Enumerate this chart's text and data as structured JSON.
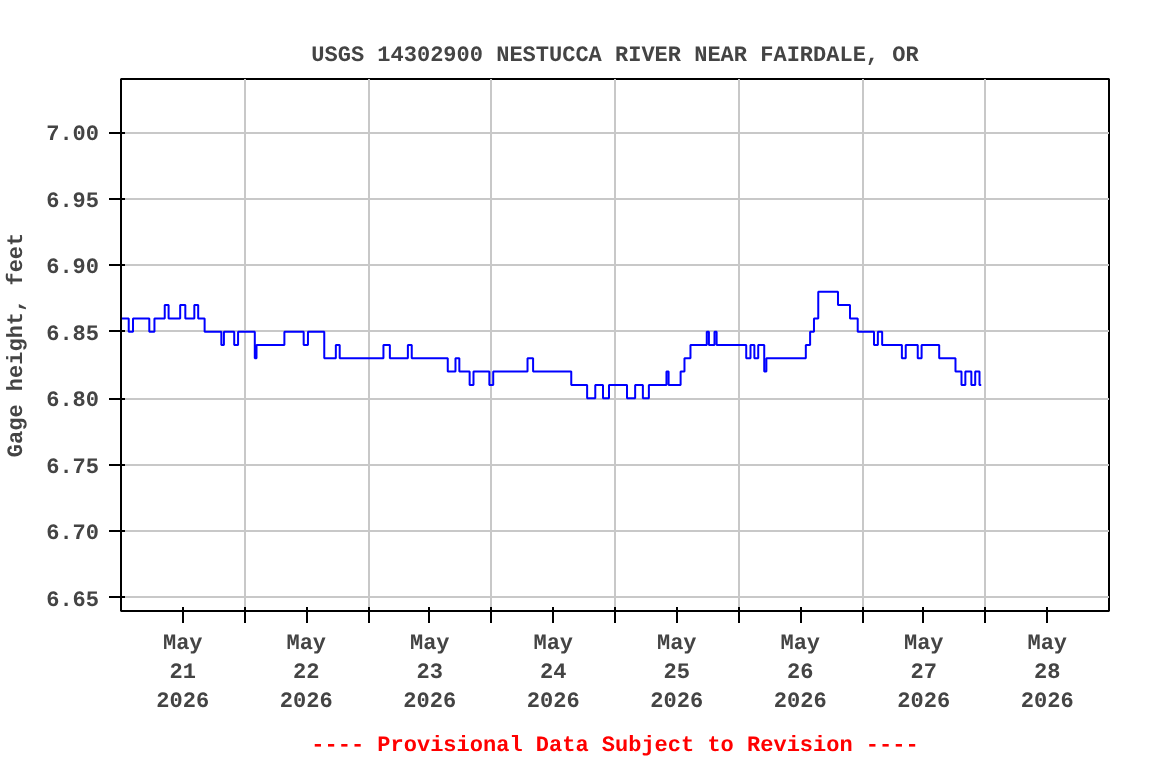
{
  "chart_data": {
    "type": "step",
    "title": "USGS 14302900 NESTUCCA RIVER NEAR FAIRDALE, OR",
    "ylabel": "Gage height, feet",
    "annotations": [
      "---- Provisional Data Subject to Revision ----"
    ],
    "xlim": [
      "2026-05-21T00:00",
      "2026-05-29T00:00"
    ],
    "ylim": [
      6.64,
      7.04
    ],
    "yticks": [
      {
        "value": 6.65,
        "label": "6.65"
      },
      {
        "value": 6.7,
        "label": "6.70"
      },
      {
        "value": 6.75,
        "label": "6.75"
      },
      {
        "value": 6.8,
        "label": "6.80"
      },
      {
        "value": 6.85,
        "label": "6.85"
      },
      {
        "value": 6.9,
        "label": "6.90"
      },
      {
        "value": 6.95,
        "label": "6.95"
      },
      {
        "value": 7.0,
        "label": "7.00"
      }
    ],
    "xticks": [
      {
        "value": "2026-05-21T12:00",
        "label": "May\n21\n2026"
      },
      {
        "value": "2026-05-22T00:00",
        "label": null
      },
      {
        "value": "2026-05-22T12:00",
        "label": "May\n22\n2026"
      },
      {
        "value": "2026-05-23T00:00",
        "label": null
      },
      {
        "value": "2026-05-23T12:00",
        "label": "May\n23\n2026"
      },
      {
        "value": "2026-05-24T00:00",
        "label": null
      },
      {
        "value": "2026-05-24T12:00",
        "label": "May\n24\n2026"
      },
      {
        "value": "2026-05-25T00:00",
        "label": null
      },
      {
        "value": "2026-05-25T12:00",
        "label": "May\n25\n2026"
      },
      {
        "value": "2026-05-26T00:00",
        "label": null
      },
      {
        "value": "2026-05-26T12:00",
        "label": "May\n26\n2026"
      },
      {
        "value": "2026-05-27T00:00",
        "label": null
      },
      {
        "value": "2026-05-27T12:00",
        "label": "May\n27\n2026"
      },
      {
        "value": "2026-05-28T00:00",
        "label": null
      },
      {
        "value": "2026-05-28T12:00",
        "label": "May\n28\n2026"
      }
    ],
    "grid": true,
    "line_style": "solid",
    "series": [
      {
        "color": "#0000ff",
        "x": [
          "2026-05-21T00:00",
          "2026-05-21T01:30",
          "2026-05-21T02:20",
          "2026-05-21T05:30",
          "2026-05-21T06:30",
          "2026-05-21T08:30",
          "2026-05-21T09:15",
          "2026-05-21T11:30",
          "2026-05-21T12:30",
          "2026-05-21T14:15",
          "2026-05-21T15:00",
          "2026-05-21T16:15",
          "2026-05-21T19:30",
          "2026-05-21T20:00",
          "2026-05-21T22:00",
          "2026-05-21T22:45",
          "2026-05-22T02:00",
          "2026-05-22T02:20",
          "2026-05-22T07:45",
          "2026-05-22T11:30",
          "2026-05-22T12:20",
          "2026-05-22T15:30",
          "2026-05-22T17:45",
          "2026-05-22T18:30",
          "2026-05-23T03:00",
          "2026-05-23T04:15",
          "2026-05-23T07:45",
          "2026-05-23T08:30",
          "2026-05-23T15:30",
          "2026-05-23T17:00",
          "2026-05-23T17:45",
          "2026-05-23T19:45",
          "2026-05-23T20:30",
          "2026-05-23T23:35",
          "2026-05-24T00:20",
          "2026-05-24T07:00",
          "2026-05-24T08:05",
          "2026-05-24T15:30",
          "2026-05-24T18:35",
          "2026-05-24T20:10",
          "2026-05-24T21:40",
          "2026-05-24T22:50",
          "2026-05-25T02:20",
          "2026-05-25T03:55",
          "2026-05-25T05:25",
          "2026-05-25T06:35",
          "2026-05-25T10:00",
          "2026-05-25T10:25",
          "2026-05-25T12:45",
          "2026-05-25T13:30",
          "2026-05-25T14:40",
          "2026-05-25T17:50",
          "2026-05-25T18:15",
          "2026-05-25T19:20",
          "2026-05-25T19:45",
          "2026-05-26T01:30",
          "2026-05-26T02:20",
          "2026-05-26T03:05",
          "2026-05-26T03:50",
          "2026-05-26T05:00",
          "2026-05-26T05:25",
          "2026-05-26T13:05",
          "2026-05-26T13:55",
          "2026-05-26T14:40",
          "2026-05-26T15:30",
          "2026-05-26T19:20",
          "2026-05-26T21:40",
          "2026-05-26T23:10",
          "2026-05-27T02:20",
          "2026-05-27T03:05",
          "2026-05-27T03:55",
          "2026-05-27T07:45",
          "2026-05-27T08:30",
          "2026-05-27T10:50",
          "2026-05-27T11:35",
          "2026-05-27T15:00",
          "2026-05-27T18:10",
          "2026-05-27T19:20",
          "2026-05-27T20:05",
          "2026-05-27T21:15",
          "2026-05-27T22:00",
          "2026-05-27T22:50",
          "2026-05-27T23:10"
        ],
        "values": [
          6.86,
          6.85,
          6.86,
          6.85,
          6.86,
          6.87,
          6.86,
          6.87,
          6.86,
          6.87,
          6.86,
          6.85,
          6.84,
          6.85,
          6.84,
          6.85,
          6.83,
          6.84,
          6.85,
          6.84,
          6.85,
          6.83,
          6.84,
          6.83,
          6.84,
          6.83,
          6.84,
          6.83,
          6.82,
          6.83,
          6.82,
          6.81,
          6.82,
          6.81,
          6.82,
          6.83,
          6.82,
          6.81,
          6.8,
          6.81,
          6.8,
          6.81,
          6.8,
          6.81,
          6.8,
          6.81,
          6.82,
          6.81,
          6.82,
          6.83,
          6.84,
          6.85,
          6.84,
          6.85,
          6.84,
          6.83,
          6.84,
          6.83,
          6.84,
          6.82,
          6.83,
          6.84,
          6.85,
          6.86,
          6.88,
          6.87,
          6.86,
          6.85,
          6.84,
          6.85,
          6.84,
          6.83,
          6.84,
          6.83,
          6.84,
          6.83,
          6.82,
          6.81,
          6.82,
          6.81,
          6.82,
          6.81,
          6.81
        ]
      }
    ]
  }
}
